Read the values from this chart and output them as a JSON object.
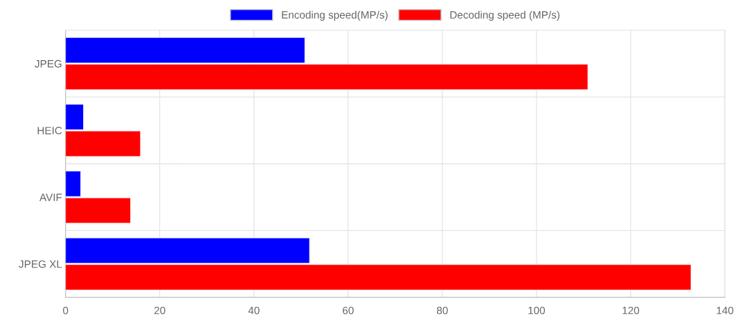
{
  "chart_data": {
    "type": "bar",
    "orientation": "horizontal",
    "categories": [
      "JPEG",
      "HEIC",
      "AVIF",
      "JPEG XL"
    ],
    "series": [
      {
        "name": "Encoding speed(MP/s)",
        "color": "#0000ff",
        "values": [
          50.8,
          3.8,
          3.2,
          51.8
        ]
      },
      {
        "name": "Decoding speed (MP/s)",
        "color": "#ff0000",
        "values": [
          110.9,
          15.9,
          13.8,
          132.8
        ]
      }
    ],
    "xlim": [
      0,
      140
    ],
    "xticks": [
      0,
      20,
      40,
      60,
      80,
      100,
      120,
      140
    ],
    "grid": true,
    "legend": "top"
  }
}
